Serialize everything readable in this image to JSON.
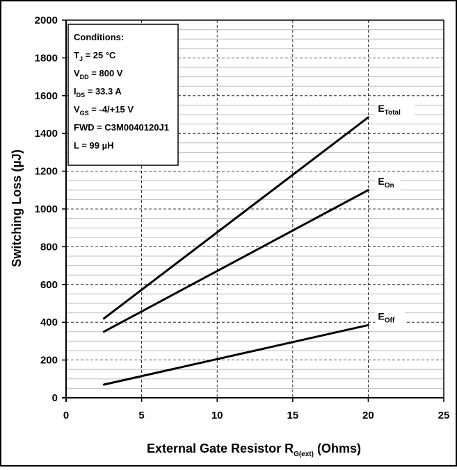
{
  "chart_data": {
    "type": "line",
    "xlabel": {
      "main": "External Gate Resistor R",
      "sub": "G(ext)",
      "suffix": " (Ohms)"
    },
    "ylabel": "Switching Loss (µJ)",
    "xlim": [
      0,
      25
    ],
    "ylim": [
      0,
      2000
    ],
    "x_ticks": [
      0,
      5,
      10,
      15,
      20,
      25
    ],
    "x_tick_labels": [
      "0",
      "5",
      "10",
      "15",
      "20",
      "25"
    ],
    "y_ticks": [
      0,
      200,
      400,
      600,
      800,
      1000,
      1200,
      1400,
      1600,
      1800,
      2000
    ],
    "y_tick_labels": [
      "0",
      "200",
      "400",
      "600",
      "800",
      "1000",
      "1200",
      "1400",
      "1600",
      "1800",
      "2000"
    ],
    "grid": true,
    "series": [
      {
        "name": "E",
        "sub": "Total",
        "x": [
          2.5,
          20
        ],
        "y": [
          420,
          1485
        ]
      },
      {
        "name": "E",
        "sub": "On",
        "x": [
          2.5,
          20
        ],
        "y": [
          350,
          1100
        ]
      },
      {
        "name": "E",
        "sub": "Off",
        "x": [
          2.5,
          20
        ],
        "y": [
          70,
          385
        ]
      }
    ],
    "conditions": {
      "title": "Conditions:",
      "lines": [
        {
          "pre": "T",
          "sub": "J",
          "post": " = 25 °C"
        },
        {
          "pre": "V",
          "sub": "DD",
          "post": " =  800 V"
        },
        {
          "pre": "I",
          "sub": "DS",
          "post": " =  33.3 A"
        },
        {
          "pre": "V",
          "sub": "GS",
          "post": " = -4/+15 V"
        },
        {
          "pre": "FWD = C3M0040120J1",
          "sub": "",
          "post": ""
        },
        {
          "pre": "L = 99 µH",
          "sub": "",
          "post": ""
        }
      ]
    }
  }
}
